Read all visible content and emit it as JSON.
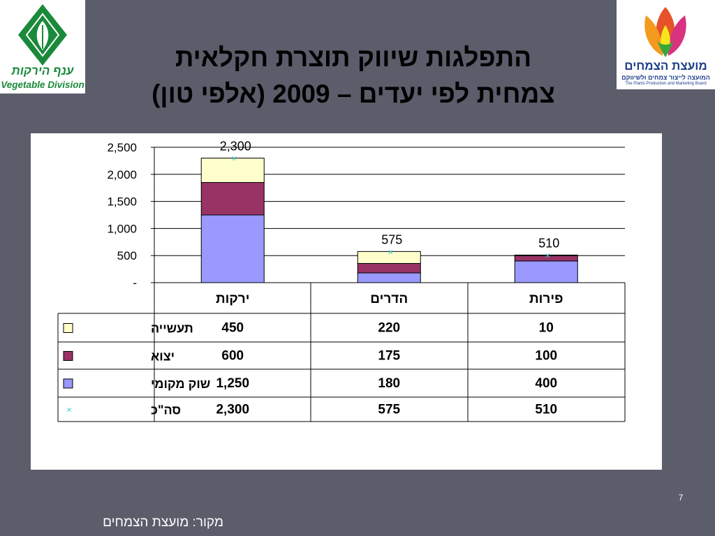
{
  "header": {
    "title_line1": "התפלגות שיווק תוצרת חקלאית",
    "title_line2": "צמחית לפי יעדים – 2009 (אלפי טון)"
  },
  "logo_left": {
    "hebrew_text": "ענף הירקות",
    "english_text": "Vegetable Division",
    "color": "#1a8a3a"
  },
  "logo_right": {
    "hebrew_title": "מועצת הצמחים",
    "hebrew_subtitle": "המועצה לייצור צמחים ולשיווקם",
    "english_text": "The Plants Production and Marketing Board",
    "color": "#1d3f8a"
  },
  "chart_data": {
    "type": "bar",
    "stacked": true,
    "categories": [
      "ירקות",
      "הדרים",
      "פירות"
    ],
    "series": [
      {
        "name": "שוק מקומי",
        "values": [
          1250,
          180,
          400
        ],
        "display": [
          "1,250",
          "180",
          "400"
        ],
        "color": "#9999ff"
      },
      {
        "name": "יצוא",
        "values": [
          600,
          175,
          100
        ],
        "display": [
          "600",
          "175",
          "100"
        ],
        "color": "#993366"
      },
      {
        "name": "תעשייה",
        "values": [
          450,
          220,
          10
        ],
        "display": [
          "450",
          "220",
          "10"
        ],
        "color": "#ffffcc"
      }
    ],
    "total": {
      "name": "סה\"כ",
      "values": [
        2300,
        575,
        510
      ],
      "display": [
        "2,300",
        "575",
        "510"
      ],
      "marker": "×",
      "color": "#33cccc"
    },
    "ylim": [
      0,
      2500
    ],
    "yticks": [
      {
        "value": 0,
        "label": "-"
      },
      {
        "value": 500,
        "label": "500"
      },
      {
        "value": 1000,
        "label": "1,000"
      },
      {
        "value": 1500,
        "label": "1,500"
      },
      {
        "value": 2000,
        "label": "2,000"
      },
      {
        "value": 2500,
        "label": "2,500"
      }
    ],
    "table_row_order": [
      "תעשייה",
      "יצוא",
      "שוק מקומי",
      "סה\"כ"
    ],
    "grid": true,
    "legend": "data-table"
  },
  "footer": {
    "page_number": "7",
    "source": "מקור: מועצת הצמחים"
  }
}
